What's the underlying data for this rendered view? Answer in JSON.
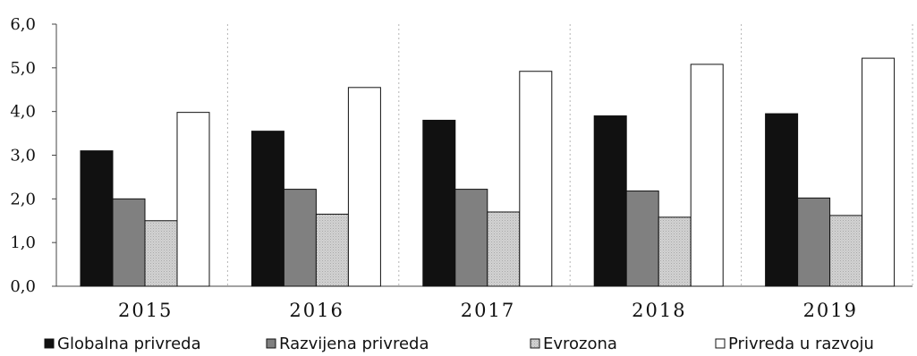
{
  "chart_data": {
    "type": "bar",
    "categories": [
      "2015",
      "2016",
      "2017",
      "2018",
      "2019"
    ],
    "series": [
      {
        "name": "Globalna privreda",
        "color": "#111111",
        "values": [
          3.1,
          3.55,
          3.8,
          3.9,
          3.95
        ]
      },
      {
        "name": "Razvijena privreda",
        "color": "#808080",
        "values": [
          2.0,
          2.22,
          2.22,
          2.18,
          2.02
        ]
      },
      {
        "name": "Evrozona",
        "color": "#c8c8c8",
        "pattern": "dotted-light",
        "values": [
          1.5,
          1.65,
          1.7,
          1.58,
          1.62
        ]
      },
      {
        "name": "Privreda u razvoju",
        "color": "#ffffff",
        "values": [
          3.98,
          4.55,
          4.92,
          5.08,
          5.22
        ]
      }
    ],
    "y_ticks": [
      "0,0",
      "1,0",
      "2,0",
      "3,0",
      "4,0",
      "5,0",
      "6,0"
    ],
    "ylim": [
      0,
      6
    ],
    "grid": "vertical dotted separators between categories",
    "legend_position": "bottom",
    "title": "",
    "xlabel": "",
    "ylabel": ""
  }
}
